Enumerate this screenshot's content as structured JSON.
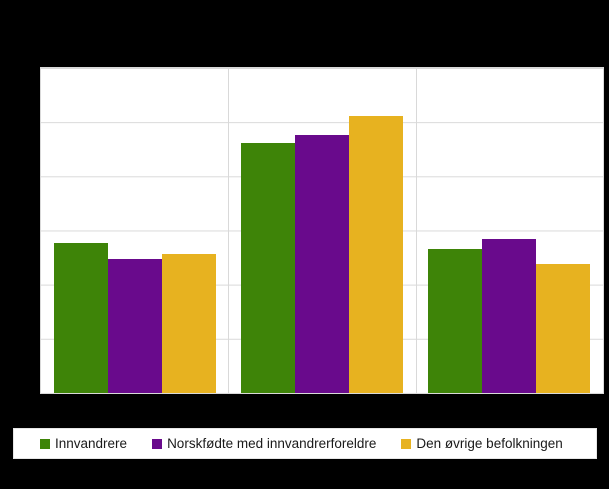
{
  "window": {
    "background_color": "#000000",
    "note": "Figure title, y-axis tick labels and x-axis category labels are obscured by solid black redaction areas; only the plot area and the legend strip are visible."
  },
  "legend": {
    "items": [
      {
        "label": "Innvandrere",
        "color": "#3e8408"
      },
      {
        "label": "Norskfødte med innvandrerforeldre",
        "color": "#690a8c"
      },
      {
        "label": "Den øvrige befolkningen",
        "color": "#e7b220"
      }
    ]
  },
  "chart_data": {
    "type": "bar",
    "title": "",
    "categories": [
      "",
      "",
      ""
    ],
    "categories_note": "Three category groups; their axis labels are redacted (black) and not readable.",
    "series": [
      {
        "name": "Innvandrere",
        "color": "#3e8408",
        "values": [
          2.77,
          4.61,
          2.65
        ]
      },
      {
        "name": "Norskfødte med innvandrerforeldre",
        "color": "#690a8c",
        "values": [
          2.48,
          4.76,
          2.84
        ]
      },
      {
        "name": "Den øvrige befolkningen",
        "color": "#e7b220",
        "values": [
          2.57,
          5.11,
          2.38
        ]
      }
    ],
    "ylim": [
      0,
      6
    ],
    "y_unit": "gridline intervals (y tick labels not visible; values estimated from gridlines)",
    "grid": "5 horizontal gridlines (every 1 unit) plus top border; 2 vertical gridlines separating the 3 category groups",
    "gridline_color": "#d9d9d9",
    "plot_background": "#ffffff",
    "legend_position": "bottom"
  }
}
